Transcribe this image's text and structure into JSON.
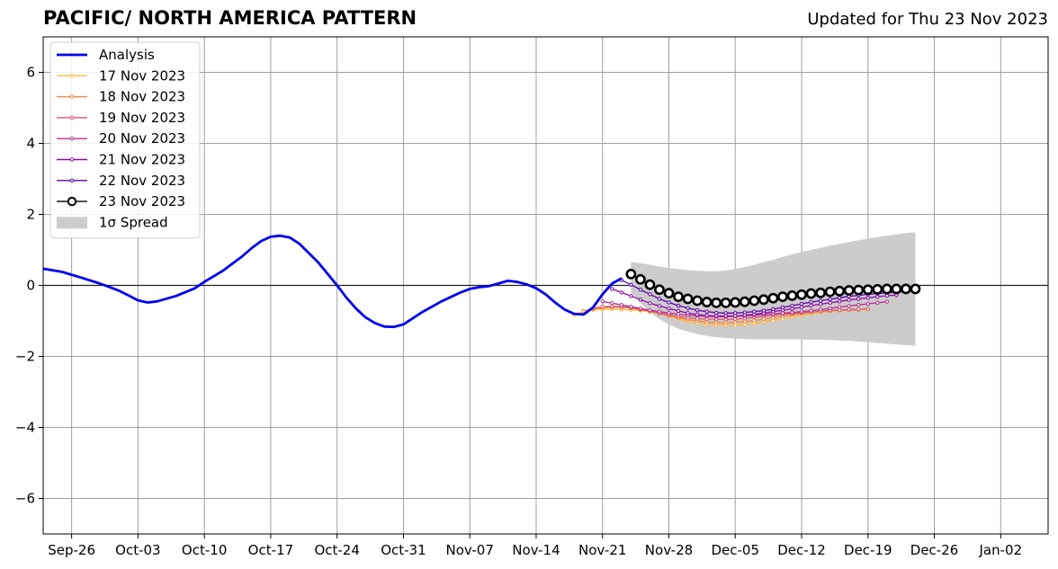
{
  "chart_data": {
    "type": "line",
    "title": "PACIFIC/ NORTH AMERICA PATTERN",
    "subtitle": "Updated for Thu 23 Nov 2023",
    "xlabel": "",
    "ylabel": "",
    "x_range": [
      "2023-09-23",
      "2024-01-07"
    ],
    "ylim": [
      -7,
      7
    ],
    "x_ticks": [
      {
        "date": "2023-09-26",
        "label": "Sep-26"
      },
      {
        "date": "2023-10-03",
        "label": "Oct-03"
      },
      {
        "date": "2023-10-10",
        "label": "Oct-10"
      },
      {
        "date": "2023-10-17",
        "label": "Oct-17"
      },
      {
        "date": "2023-10-24",
        "label": "Oct-24"
      },
      {
        "date": "2023-10-31",
        "label": "Oct-31"
      },
      {
        "date": "2023-11-07",
        "label": "Nov-07"
      },
      {
        "date": "2023-11-14",
        "label": "Nov-14"
      },
      {
        "date": "2023-11-21",
        "label": "Nov-21"
      },
      {
        "date": "2023-11-28",
        "label": "Nov-28"
      },
      {
        "date": "2023-12-05",
        "label": "Dec-05"
      },
      {
        "date": "2023-12-12",
        "label": "Dec-12"
      },
      {
        "date": "2023-12-19",
        "label": "Dec-19"
      },
      {
        "date": "2023-12-26",
        "label": "Dec-26"
      },
      {
        "date": "2024-01-02",
        "label": "Jan-02"
      }
    ],
    "y_ticks": [
      {
        "value": 6,
        "label": "6"
      },
      {
        "value": 4,
        "label": "4"
      },
      {
        "value": 2,
        "label": "2"
      },
      {
        "value": 0,
        "label": "0"
      },
      {
        "value": -2,
        "label": "−2"
      },
      {
        "value": -4,
        "label": "−4"
      },
      {
        "value": -6,
        "label": "−6"
      }
    ],
    "grid": true,
    "legend_position": "top-left",
    "analysis": {
      "name": "Analysis",
      "color": "#0000ee",
      "points": [
        [
          "2023-09-23",
          0.47
        ],
        [
          "2023-09-25",
          0.38
        ],
        [
          "2023-09-27",
          0.22
        ],
        [
          "2023-09-29",
          0.05
        ],
        [
          "2023-10-01",
          -0.15
        ],
        [
          "2023-10-02",
          -0.28
        ],
        [
          "2023-10-03",
          -0.42
        ],
        [
          "2023-10-04",
          -0.48
        ],
        [
          "2023-10-05",
          -0.45
        ],
        [
          "2023-10-07",
          -0.3
        ],
        [
          "2023-10-09",
          -0.08
        ],
        [
          "2023-10-10",
          0.1
        ],
        [
          "2023-10-12",
          0.42
        ],
        [
          "2023-10-14",
          0.82
        ],
        [
          "2023-10-15",
          1.05
        ],
        [
          "2023-10-16",
          1.25
        ],
        [
          "2023-10-17",
          1.37
        ],
        [
          "2023-10-18",
          1.4
        ],
        [
          "2023-10-19",
          1.35
        ],
        [
          "2023-10-20",
          1.18
        ],
        [
          "2023-10-22",
          0.65
        ],
        [
          "2023-10-24",
          0.0
        ],
        [
          "2023-10-25",
          -0.35
        ],
        [
          "2023-10-26",
          -0.65
        ],
        [
          "2023-10-27",
          -0.9
        ],
        [
          "2023-10-28",
          -1.06
        ],
        [
          "2023-10-29",
          -1.16
        ],
        [
          "2023-10-30",
          -1.17
        ],
        [
          "2023-10-31",
          -1.1
        ],
        [
          "2023-11-02",
          -0.75
        ],
        [
          "2023-11-04",
          -0.45
        ],
        [
          "2023-11-06",
          -0.2
        ],
        [
          "2023-11-07",
          -0.1
        ],
        [
          "2023-11-08",
          -0.05
        ],
        [
          "2023-11-09",
          -0.02
        ],
        [
          "2023-11-10",
          0.05
        ],
        [
          "2023-11-11",
          0.13
        ],
        [
          "2023-11-12",
          0.1
        ],
        [
          "2023-11-13",
          0.03
        ],
        [
          "2023-11-14",
          -0.08
        ],
        [
          "2023-11-15",
          -0.25
        ],
        [
          "2023-11-16",
          -0.48
        ],
        [
          "2023-11-17",
          -0.68
        ],
        [
          "2023-11-18",
          -0.8
        ],
        [
          "2023-11-19",
          -0.82
        ],
        [
          "2023-11-20",
          -0.62
        ],
        [
          "2023-11-21",
          -0.25
        ],
        [
          "2023-11-22",
          0.05
        ],
        [
          "2023-11-23",
          0.2
        ]
      ]
    },
    "forecasts": [
      {
        "name": "17 Nov 2023",
        "color": "#fcb93c",
        "start": "2023-11-18",
        "values": [
          -0.82,
          -0.74,
          -0.69,
          -0.67,
          -0.67,
          -0.68,
          -0.69,
          -0.71,
          -0.74,
          -0.79,
          -0.86,
          -0.94,
          -1.01,
          -1.06,
          -1.09,
          -1.11,
          -1.12,
          -1.12,
          -1.1,
          -1.07,
          -1.03,
          -0.98,
          -0.94,
          -0.89,
          -0.84,
          -0.8,
          -0.76,
          -0.73,
          -0.71,
          -0.69,
          -0.68,
          -0.68
        ]
      },
      {
        "name": "18 Nov 2023",
        "color": "#f7843b",
        "start": "2023-11-19",
        "values": [
          -0.72,
          -0.66,
          -0.63,
          -0.62,
          -0.62,
          -0.64,
          -0.68,
          -0.73,
          -0.79,
          -0.85,
          -0.91,
          -0.96,
          -1.0,
          -1.03,
          -1.05,
          -1.05,
          -1.04,
          -1.02,
          -0.99,
          -0.95,
          -0.91,
          -0.87,
          -0.83,
          -0.79,
          -0.76,
          -0.73,
          -0.71,
          -0.7,
          -0.69,
          -0.69
        ]
      },
      {
        "name": "19 Nov 2023",
        "color": "#dd5468",
        "start": "2023-11-20",
        "values": [
          -0.65,
          -0.6,
          -0.59,
          -0.6,
          -0.63,
          -0.67,
          -0.72,
          -0.78,
          -0.83,
          -0.87,
          -0.91,
          -0.94,
          -0.95,
          -0.96,
          -0.96,
          -0.95,
          -0.93,
          -0.9,
          -0.87,
          -0.84,
          -0.81,
          -0.79,
          -0.77,
          -0.75,
          -0.73,
          -0.71,
          -0.7,
          -0.68,
          -0.67,
          -0.66
        ]
      },
      {
        "name": "20 Nov 2023",
        "color": "#b82e8e",
        "start": "2023-11-21",
        "values": [
          -0.45,
          -0.5,
          -0.55,
          -0.6,
          -0.65,
          -0.7,
          -0.74,
          -0.78,
          -0.81,
          -0.84,
          -0.86,
          -0.87,
          -0.88,
          -0.88,
          -0.87,
          -0.86,
          -0.84,
          -0.82,
          -0.8,
          -0.78,
          -0.76,
          -0.74,
          -0.71,
          -0.68,
          -0.65,
          -0.61,
          -0.58,
          -0.55,
          -0.52,
          -0.49,
          -0.46
        ]
      },
      {
        "name": "21 Nov 2023",
        "color": "#8b0aa5",
        "start": "2023-11-22",
        "values": [
          -0.1,
          -0.2,
          -0.3,
          -0.4,
          -0.5,
          -0.58,
          -0.65,
          -0.72,
          -0.78,
          -0.82,
          -0.85,
          -0.86,
          -0.86,
          -0.86,
          -0.84,
          -0.81,
          -0.78,
          -0.74,
          -0.7,
          -0.66,
          -0.61,
          -0.57,
          -0.53,
          -0.49,
          -0.45,
          -0.41,
          -0.38,
          -0.35,
          -0.32,
          -0.29,
          -0.27
        ]
      },
      {
        "name": "22 Nov 2023",
        "color": "#5b02a3",
        "start": "2023-11-23",
        "values": [
          0.15,
          0.02,
          -0.12,
          -0.25,
          -0.38,
          -0.48,
          -0.57,
          -0.64,
          -0.7,
          -0.74,
          -0.77,
          -0.78,
          -0.78,
          -0.76,
          -0.74,
          -0.71,
          -0.67,
          -0.62,
          -0.57,
          -0.52,
          -0.47,
          -0.43,
          -0.39,
          -0.35,
          -0.31,
          -0.28,
          -0.25,
          -0.23,
          -0.21,
          -0.19,
          -0.18
        ]
      },
      {
        "name": "23 Nov 2023",
        "color": "#000000",
        "marker_fill": "#ffffff",
        "start": "2023-11-24",
        "values": [
          0.32,
          0.17,
          0.02,
          -0.12,
          -0.22,
          -0.32,
          -0.38,
          -0.43,
          -0.47,
          -0.49,
          -0.49,
          -0.48,
          -0.46,
          -0.43,
          -0.4,
          -0.36,
          -0.32,
          -0.29,
          -0.26,
          -0.23,
          -0.21,
          -0.18,
          -0.16,
          -0.14,
          -0.13,
          -0.12,
          -0.11,
          -0.1,
          -0.1,
          -0.1,
          -0.1
        ]
      }
    ],
    "spread": {
      "name": "1σ Spread",
      "color": "#cccccc",
      "start": "2023-11-24",
      "upper": [
        0.65,
        0.63,
        0.58,
        0.53,
        0.49,
        0.46,
        0.43,
        0.41,
        0.4,
        0.4,
        0.42,
        0.46,
        0.52,
        0.58,
        0.65,
        0.72,
        0.8,
        0.87,
        0.94,
        1.0,
        1.06,
        1.12,
        1.17,
        1.22,
        1.27,
        1.32,
        1.36,
        1.4,
        1.44,
        1.47,
        1.5
      ],
      "lower": [
        -0.2,
        -0.5,
        -0.75,
        -0.95,
        -1.1,
        -1.22,
        -1.3,
        -1.37,
        -1.42,
        -1.46,
        -1.48,
        -1.5,
        -1.51,
        -1.52,
        -1.52,
        -1.52,
        -1.52,
        -1.52,
        -1.52,
        -1.53,
        -1.53,
        -1.54,
        -1.55,
        -1.56,
        -1.58,
        -1.6,
        -1.62,
        -1.64,
        -1.66,
        -1.68,
        -1.7
      ]
    }
  }
}
